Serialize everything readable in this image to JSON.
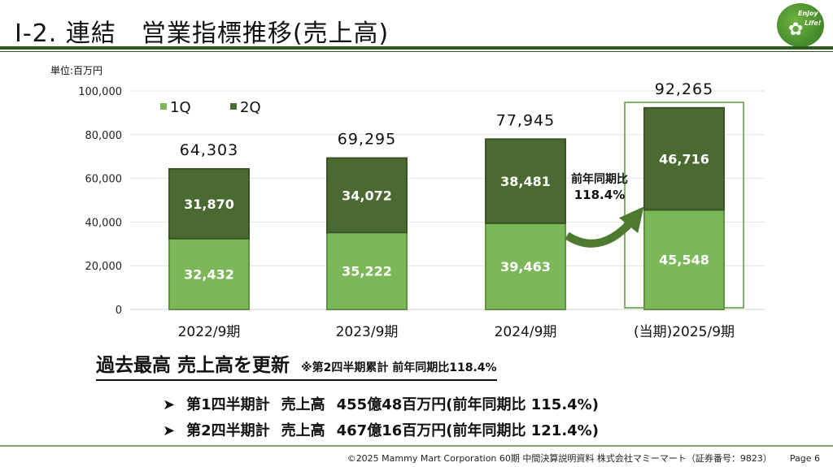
{
  "header": {
    "title": "Ⅰ-2. 連結　営業指標推移(売上高)",
    "logo_text": [
      "Enjoy",
      "Life!"
    ]
  },
  "chart_data": {
    "type": "bar",
    "stacked": true,
    "unit_label": "単位:百万円",
    "categories": [
      "2022/9期",
      "2023/9期",
      "2024/9期",
      "(当期)2025/9期"
    ],
    "series": [
      {
        "name": "1Q",
        "color": "#7cb85a",
        "values": [
          32432,
          35222,
          39463,
          45548
        ]
      },
      {
        "name": "2Q",
        "color": "#4a6a32",
        "values": [
          31870,
          34072,
          38481,
          46716
        ]
      }
    ],
    "totals": [
      64303,
      69295,
      77945,
      92265
    ],
    "value_labels": {
      "1Q": [
        "32,432",
        "35,222",
        "39,463",
        "45,548"
      ],
      "2Q": [
        "31,870",
        "34,072",
        "38,481",
        "46,716"
      ],
      "totals": [
        "64,303",
        "69,295",
        "77,945",
        "92,265"
      ]
    },
    "ylim": [
      0,
      100000
    ],
    "yticks": [
      "0",
      "20,000",
      "40,000",
      "60,000",
      "80,000",
      "100,000"
    ],
    "legend": "top-left",
    "grid": true,
    "annotation": {
      "line1": "前年同期比",
      "line2": "118.4%"
    },
    "highlight_category": "(当期)2025/9期"
  },
  "summary": {
    "headline": "過去最高 売上高を更新",
    "note": "※第2四半期累計  前年同期比118.4%",
    "bullets": [
      {
        "marker": "➤",
        "period": "第1四半期計",
        "label": "売上高",
        "amount": "455億48百万円(前年同期比  115.4%)"
      },
      {
        "marker": "➤",
        "period": "第2四半期計",
        "label": "売上高",
        "amount": "467億16百万円(前年同期比  121.4%)"
      }
    ]
  },
  "footer": {
    "text": "©2025  Mammy Mart Corporation  60期  中間決算説明資料  株式会社マミーマート（証券番号：9823）",
    "page": "Page  6"
  }
}
